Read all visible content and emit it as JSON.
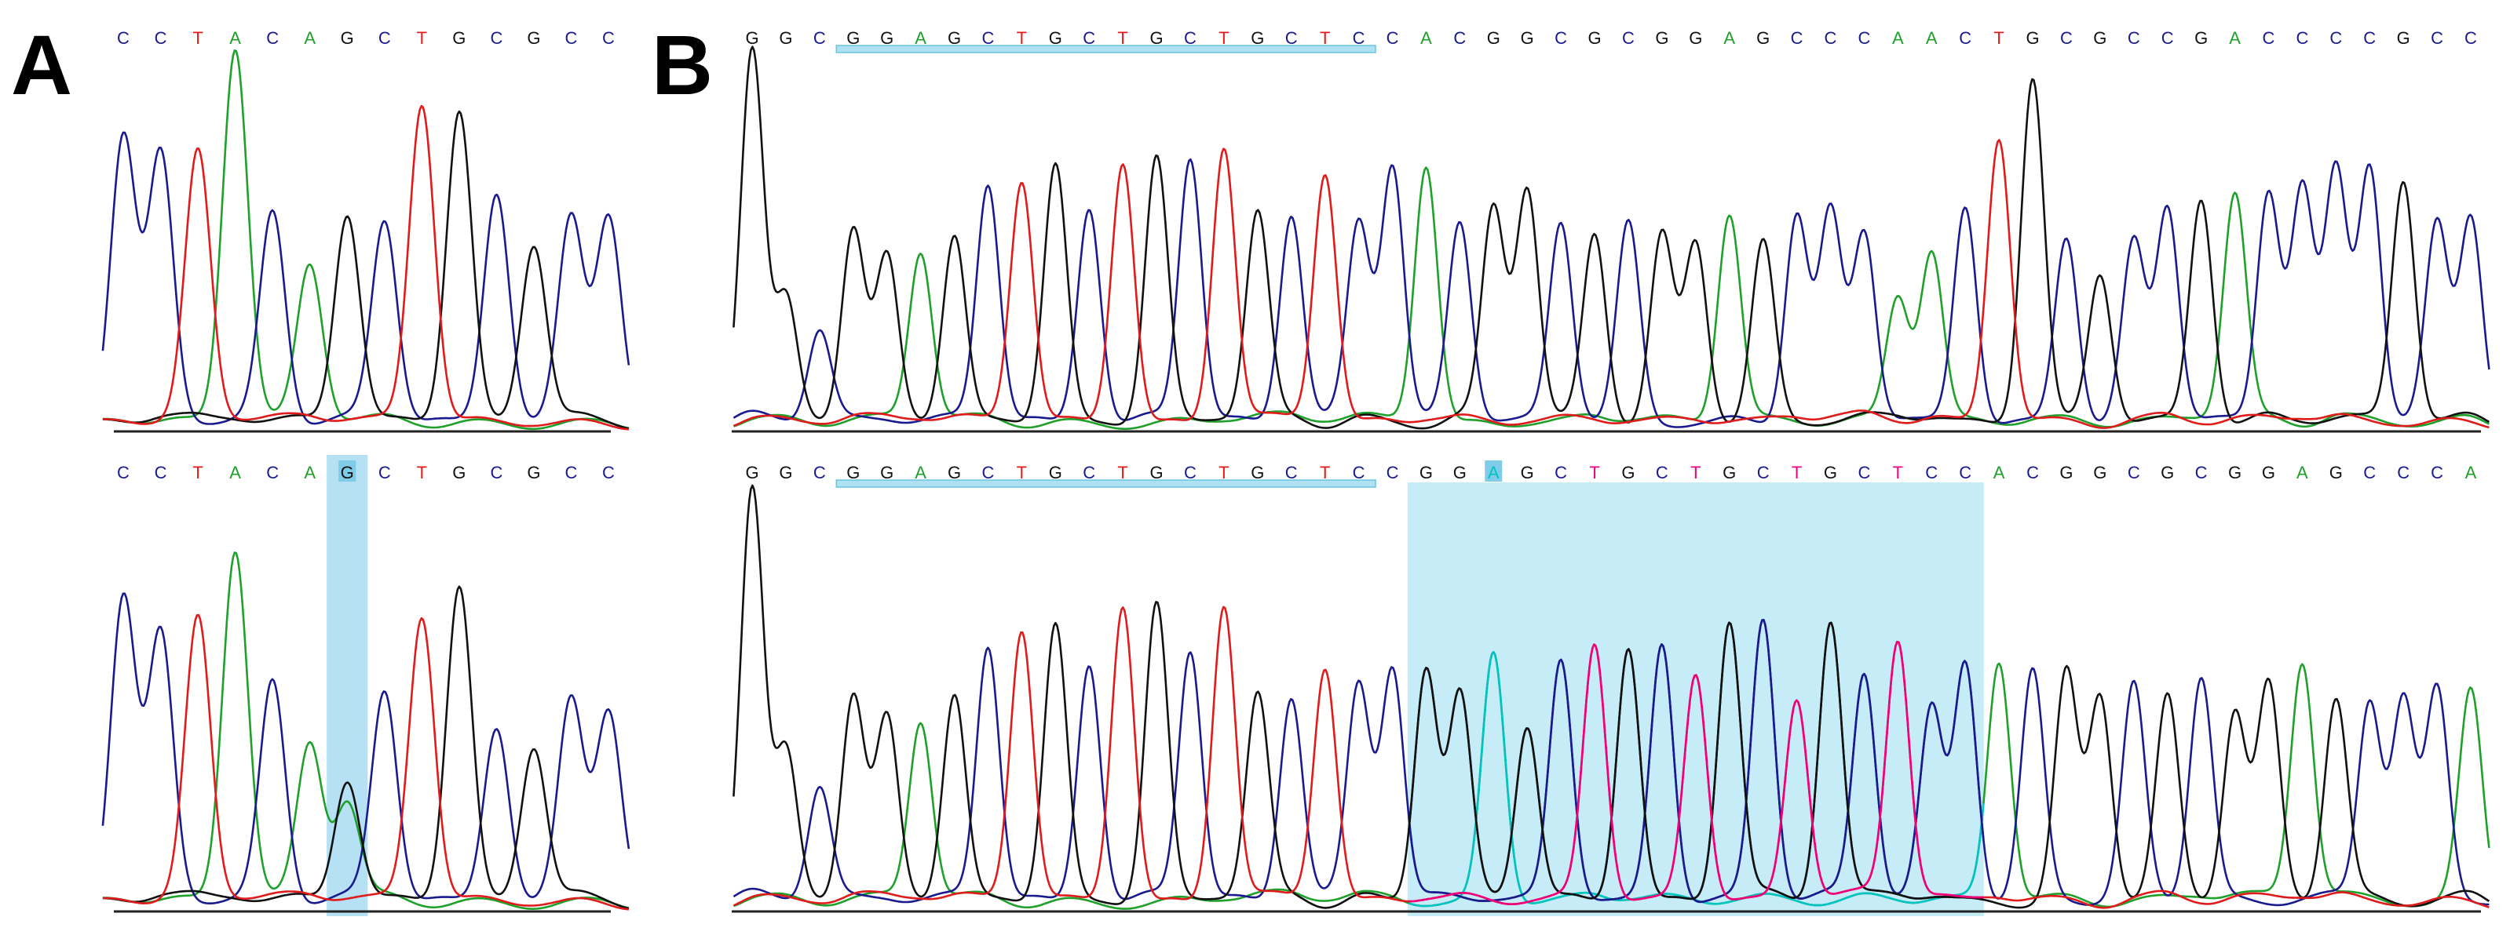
{
  "panels": [
    {
      "label": "A",
      "rows": [
        {
          "sequence": [
            "C",
            "C",
            "T",
            "A",
            "C",
            "A",
            "G",
            "C",
            "T",
            "G",
            "C",
            "G",
            "C",
            "C"
          ],
          "peak_heights": [
            0.77,
            0.71,
            0.72,
            1.0,
            0.56,
            0.42,
            0.56,
            0.54,
            0.85,
            0.83,
            0.62,
            0.48,
            0.55,
            0.56
          ],
          "underline_range": null,
          "highlight_range": null,
          "highlight_bases": [],
          "secondary_peaks": [],
          "bright_colors": false
        },
        {
          "sequence": [
            "C",
            "C",
            "T",
            "A",
            "C",
            "A",
            "G",
            "C",
            "T",
            "G",
            "C",
            "G",
            "C",
            "C"
          ],
          "peak_heights": [
            0.74,
            0.64,
            0.68,
            0.85,
            0.53,
            0.38,
            0.3,
            0.51,
            0.69,
            0.76,
            0.43,
            0.38,
            0.49,
            0.47
          ],
          "underline_range": null,
          "highlight_range": [
            6,
            6
          ],
          "highlight_bases": [
            6
          ],
          "secondary_peaks": [
            {
              "index": 6,
              "base": "A",
              "height": 0.23
            }
          ],
          "bright_colors": false
        }
      ]
    },
    {
      "label": "B",
      "rows": [
        {
          "sequence": [
            "G",
            "G",
            "C",
            "G",
            "G",
            "A",
            "G",
            "C",
            "T",
            "G",
            "C",
            "T",
            "G",
            "C",
            "T",
            "G",
            "C",
            "T",
            "C",
            "C",
            "A",
            "C",
            "G",
            "G",
            "C",
            "G",
            "C",
            "G",
            "G",
            "A",
            "G",
            "C",
            "C",
            "C",
            "A",
            "A",
            "C",
            "T",
            "G",
            "C",
            "G",
            "C",
            "C",
            "G",
            "A",
            "C",
            "C",
            "C",
            "C",
            "G",
            "C",
            "C"
          ],
          "peak_heights": [
            1.0,
            0.33,
            0.25,
            0.52,
            0.44,
            0.46,
            0.5,
            0.64,
            0.65,
            0.69,
            0.58,
            0.7,
            0.71,
            0.71,
            0.74,
            0.56,
            0.56,
            0.67,
            0.53,
            0.69,
            0.69,
            0.53,
            0.57,
            0.63,
            0.53,
            0.5,
            0.53,
            0.5,
            0.48,
            0.56,
            0.48,
            0.56,
            0.56,
            0.51,
            0.34,
            0.46,
            0.58,
            0.76,
            0.92,
            0.5,
            0.4,
            0.48,
            0.58,
            0.6,
            0.61,
            0.62,
            0.63,
            0.67,
            0.69,
            0.65,
            0.53,
            0.56
          ],
          "underline_range": [
            3,
            18
          ],
          "highlight_range": null,
          "highlight_bases": [],
          "secondary_peaks": [],
          "bright_colors": false
        },
        {
          "sequence": [
            "G",
            "G",
            "C",
            "G",
            "G",
            "A",
            "G",
            "C",
            "T",
            "G",
            "C",
            "T",
            "G",
            "C",
            "T",
            "G",
            "C",
            "T",
            "C",
            "C",
            "G",
            "G",
            "A",
            "G",
            "C",
            "T",
            "G",
            "C",
            "T",
            "G",
            "C",
            "T",
            "G",
            "C",
            "T",
            "C",
            "C",
            "A",
            "C",
            "G",
            "G",
            "C",
            "G",
            "C",
            "G",
            "G",
            "A",
            "G",
            "C",
            "C",
            "C",
            "A"
          ],
          "peak_heights": [
            1.0,
            0.36,
            0.28,
            0.5,
            0.44,
            0.44,
            0.5,
            0.62,
            0.66,
            0.67,
            0.58,
            0.72,
            0.72,
            0.61,
            0.72,
            0.5,
            0.5,
            0.57,
            0.52,
            0.57,
            0.57,
            0.5,
            0.6,
            0.43,
            0.58,
            0.62,
            0.62,
            0.62,
            0.55,
            0.68,
            0.68,
            0.49,
            0.68,
            0.55,
            0.63,
            0.46,
            0.58,
            0.58,
            0.55,
            0.55,
            0.5,
            0.52,
            0.49,
            0.54,
            0.46,
            0.52,
            0.58,
            0.49,
            0.49,
            0.49,
            0.51,
            0.51
          ],
          "underline_range": [
            3,
            18
          ],
          "highlight_range": [
            20,
            36
          ],
          "highlight_bases": [
            22
          ],
          "secondary_peaks": [],
          "bright_colors": true
        }
      ]
    }
  ],
  "colors": {
    "A": "#1fa02b",
    "C": "#1a1a8f",
    "G": "#111111",
    "T": "#e01b1b",
    "A_bright": "#00c4c4",
    "T_bright": "#f0007a",
    "highlight": "#bfeaf6",
    "highlight_column": "#a9dcf2",
    "underline": "#aee2f3",
    "underline_edge": "#6cc3e0"
  }
}
